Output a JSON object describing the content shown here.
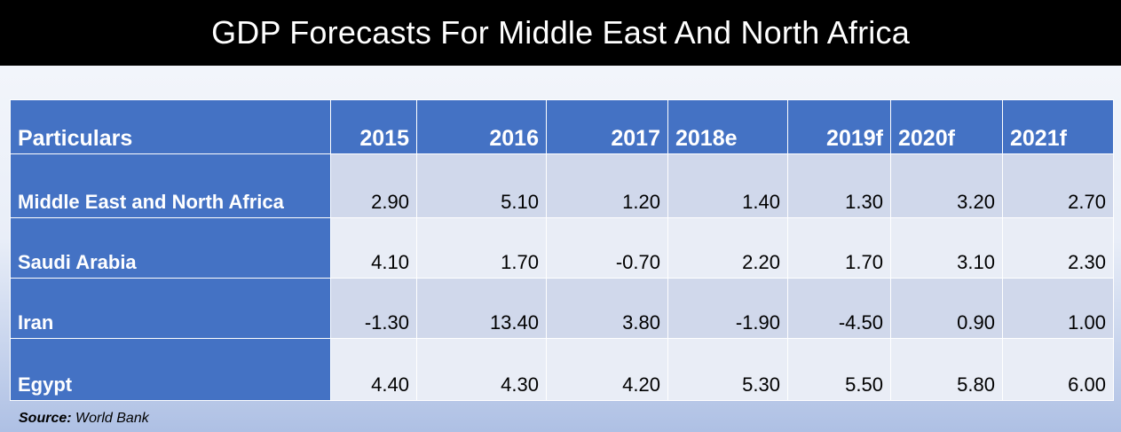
{
  "title": "GDP Forecasts For Middle East And North Africa",
  "source": {
    "label": "Source:",
    "text": "World Bank"
  },
  "table": {
    "header": [
      "Particulars",
      "2015",
      "2016",
      "2017",
      "2018e",
      "2019f",
      "2020f",
      "2021f"
    ],
    "rows": [
      {
        "label": "Middle East and North Africa",
        "cells": [
          "2.90",
          "5.10",
          "1.20",
          "1.40",
          "1.30",
          "3.20",
          "2.70"
        ]
      },
      {
        "label": "Saudi Arabia",
        "cells": [
          "4.10",
          "1.70",
          "-0.70",
          "2.20",
          "1.70",
          "3.10",
          "2.30"
        ]
      },
      {
        "label": "Iran",
        "cells": [
          "-1.30",
          "13.40",
          "3.80",
          "-1.90",
          "-4.50",
          "0.90",
          "1.00"
        ]
      },
      {
        "label": "Egypt",
        "cells": [
          "4.40",
          "4.30",
          "4.20",
          "5.30",
          "5.50",
          "5.80",
          "6.00"
        ]
      }
    ]
  },
  "colors": {
    "header_bg": "#4472c4",
    "row_alt_1": "#d0d8eb",
    "row_alt_2": "#e9edf6",
    "title_bg": "#000000"
  },
  "chart_data": {
    "type": "table",
    "title": "GDP Forecasts For Middle East And North Africa",
    "columns": [
      "Particulars",
      "2015",
      "2016",
      "2017",
      "2018e",
      "2019f",
      "2020f",
      "2021f"
    ],
    "rows": [
      [
        "Middle East and North Africa",
        2.9,
        5.1,
        1.2,
        1.4,
        1.3,
        3.2,
        2.7
      ],
      [
        "Saudi Arabia",
        4.1,
        1.7,
        -0.7,
        2.2,
        1.7,
        3.1,
        2.3
      ],
      [
        "Iran",
        -1.3,
        13.4,
        3.8,
        -1.9,
        -4.5,
        0.9,
        1.0
      ],
      [
        "Egypt",
        4.4,
        4.3,
        4.2,
        5.3,
        5.5,
        5.8,
        6.0
      ]
    ]
  }
}
